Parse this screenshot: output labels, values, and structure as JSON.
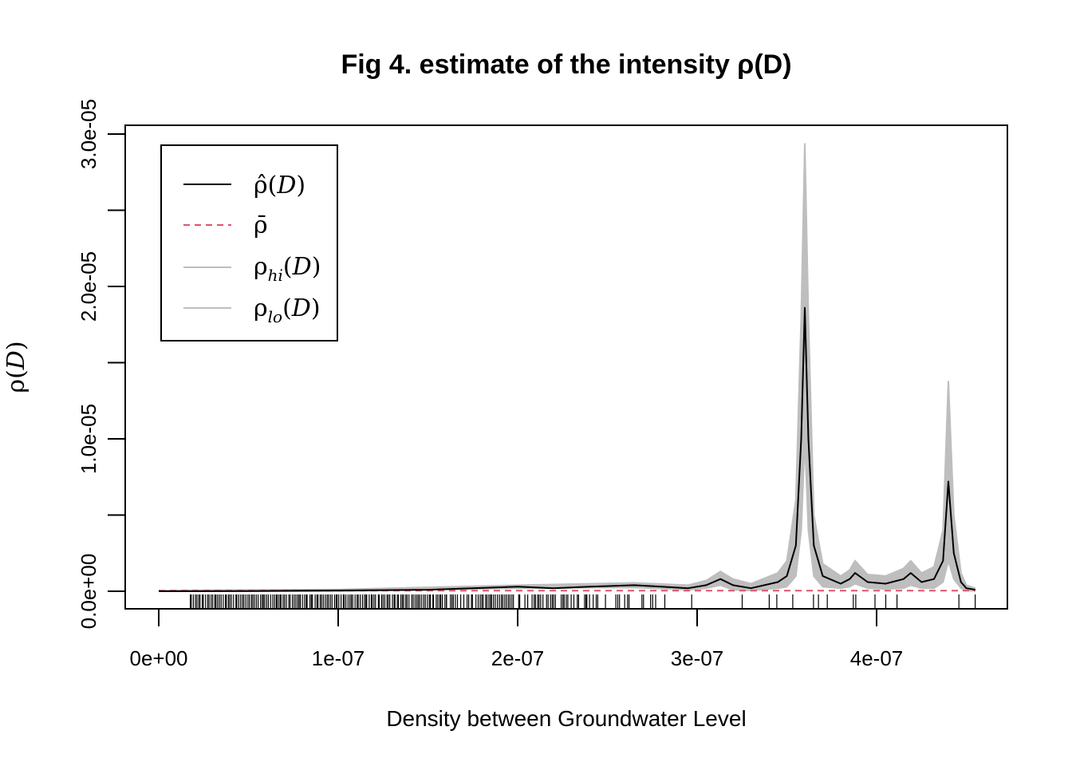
{
  "chart_data": {
    "type": "line",
    "title": "Fig 4. estimate of the intensity ρ(D)",
    "xlabel": "Density between Groundwater Level",
    "ylabel": "ρ(D)",
    "xlim": [
      0,
      4.55e-07
    ],
    "ylim": [
      0,
      3.05e-05
    ],
    "x_ticks": [
      0,
      1e-07,
      2e-07,
      3e-07,
      4e-07
    ],
    "x_tick_labels": [
      "0e+00",
      "1e-07",
      "2e-07",
      "3e-07",
      "4e-07"
    ],
    "y_ticks": [
      0,
      5e-06,
      1e-05,
      1.5e-05,
      2e-05,
      2.5e-05,
      3e-05
    ],
    "y_tick_labels": [
      "0.0e+00",
      "",
      "1.0e-05",
      "",
      "2.0e-05",
      "",
      "3.0e-05"
    ],
    "grid": false,
    "legend_position": "top-left",
    "legend": [
      {
        "label": "ρ̂(D)",
        "style": "solid",
        "color": "#000000"
      },
      {
        "label": "ρ̄",
        "style": "dashed",
        "color": "#DF536B"
      },
      {
        "label": "ρhi(D)",
        "style": "solid",
        "color": "#BEBEBE"
      },
      {
        "label": "ρlo(D)",
        "style": "solid",
        "color": "#BEBEBE"
      }
    ],
    "rug": [
      [
        0.17,
        0.68,
        1.0
      ],
      [
        0.68,
        1.6,
        1.0
      ],
      [
        1.6,
        2.2,
        0.8
      ],
      [
        2.2,
        2.82,
        0.5
      ],
      [
        2.82,
        3.4,
        0.08
      ],
      [
        3.4,
        3.8,
        0.12
      ],
      [
        3.8,
        4.55,
        0.06
      ]
    ],
    "series": [
      {
        "name": "ρ̂(D)",
        "color": "#000000",
        "x": [
          0.0,
          5e-08,
          1e-07,
          1.5e-07,
          2e-07,
          2.2e-07,
          2.4e-07,
          2.65e-07,
          2.8e-07,
          2.95e-07,
          3.05e-07,
          3.13e-07,
          3.2e-07,
          3.3e-07,
          3.45e-07,
          3.5e-07,
          3.55e-07,
          3.58e-07,
          3.6e-07,
          3.62e-07,
          3.65e-07,
          3.7e-07,
          3.8e-07,
          3.85e-07,
          3.88e-07,
          3.95e-07,
          4.05e-07,
          4.15e-07,
          4.19e-07,
          4.25e-07,
          4.32e-07,
          4.37e-07,
          4.4e-07,
          4.43e-07,
          4.47e-07,
          4.5e-07,
          4.55e-07
        ],
        "y": [
          0.0,
          1e-08,
          5e-08,
          1e-07,
          3e-07,
          2e-07,
          3e-07,
          4e-07,
          3e-07,
          2e-07,
          4e-07,
          8e-07,
          4e-07,
          2e-07,
          6e-07,
          1e-06,
          3e-06,
          1e-05,
          1.86e-05,
          1e-05,
          3e-06,
          1e-06,
          5e-07,
          8e-07,
          1.2e-06,
          6e-07,
          5e-07,
          8e-07,
          1.2e-06,
          6e-07,
          8e-07,
          2e-06,
          7.2e-06,
          2.5e-06,
          6e-07,
          2e-07,
          1e-07
        ]
      },
      {
        "name": "ρ̄",
        "color": "#DF536B",
        "x": [
          0.0,
          4.55e-07
        ],
        "y": [
          4e-08,
          4e-08
        ]
      },
      {
        "name": "ρhi(D)",
        "color": "#BEBEBE",
        "x": [
          0.0,
          1e-07,
          2e-07,
          2.65e-07,
          2.95e-07,
          3.05e-07,
          3.13e-07,
          3.2e-07,
          3.3e-07,
          3.45e-07,
          3.5e-07,
          3.55e-07,
          3.58e-07,
          3.6e-07,
          3.62e-07,
          3.65e-07,
          3.7e-07,
          3.8e-07,
          3.85e-07,
          3.88e-07,
          3.95e-07,
          4.05e-07,
          4.15e-07,
          4.19e-07,
          4.25e-07,
          4.32e-07,
          4.37e-07,
          4.4e-07,
          4.43e-07,
          4.47e-07,
          4.5e-07,
          4.55e-07
        ],
        "y": [
          5e-08,
          1.2e-07,
          4e-07,
          5.5e-07,
          4e-07,
          7e-07,
          1.3e-06,
          8e-07,
          5e-07,
          1.2e-06,
          2e-06,
          6e-06,
          1.8e-05,
          2.94e-05,
          1.8e-05,
          5e-06,
          1.8e-06,
          1e-06,
          1.4e-06,
          2e-06,
          1.1e-06,
          1e-06,
          1.5e-06,
          2e-06,
          1.2e-06,
          1.6e-06,
          4e-06,
          1.38e-05,
          5e-06,
          1.2e-06,
          4e-07,
          2e-07
        ]
      },
      {
        "name": "ρlo(D)",
        "color": "#BEBEBE",
        "x": [
          0.0,
          1e-07,
          2e-07,
          2.65e-07,
          2.95e-07,
          3.05e-07,
          3.13e-07,
          3.2e-07,
          3.3e-07,
          3.45e-07,
          3.5e-07,
          3.55e-07,
          3.58e-07,
          3.6e-07,
          3.62e-07,
          3.65e-07,
          3.7e-07,
          3.8e-07,
          3.85e-07,
          3.88e-07,
          3.95e-07,
          4.05e-07,
          4.15e-07,
          4.19e-07,
          4.25e-07,
          4.32e-07,
          4.37e-07,
          4.4e-07,
          4.43e-07,
          4.47e-07,
          4.5e-07,
          4.55e-07
        ],
        "y": [
          0.0,
          0.0,
          2e-07,
          2.5e-07,
          1e-07,
          2e-07,
          4e-07,
          1e-07,
          5e-08,
          2e-07,
          3e-07,
          1e-06,
          4e-06,
          1e-05,
          4e-06,
          1e-06,
          3e-07,
          2e-07,
          3e-07,
          5e-07,
          2e-07,
          1.5e-07,
          2e-07,
          4e-07,
          2e-07,
          2e-07,
          6e-07,
          2e-06,
          8e-07,
          2e-07,
          5e-08,
          2e-08
        ]
      }
    ]
  }
}
